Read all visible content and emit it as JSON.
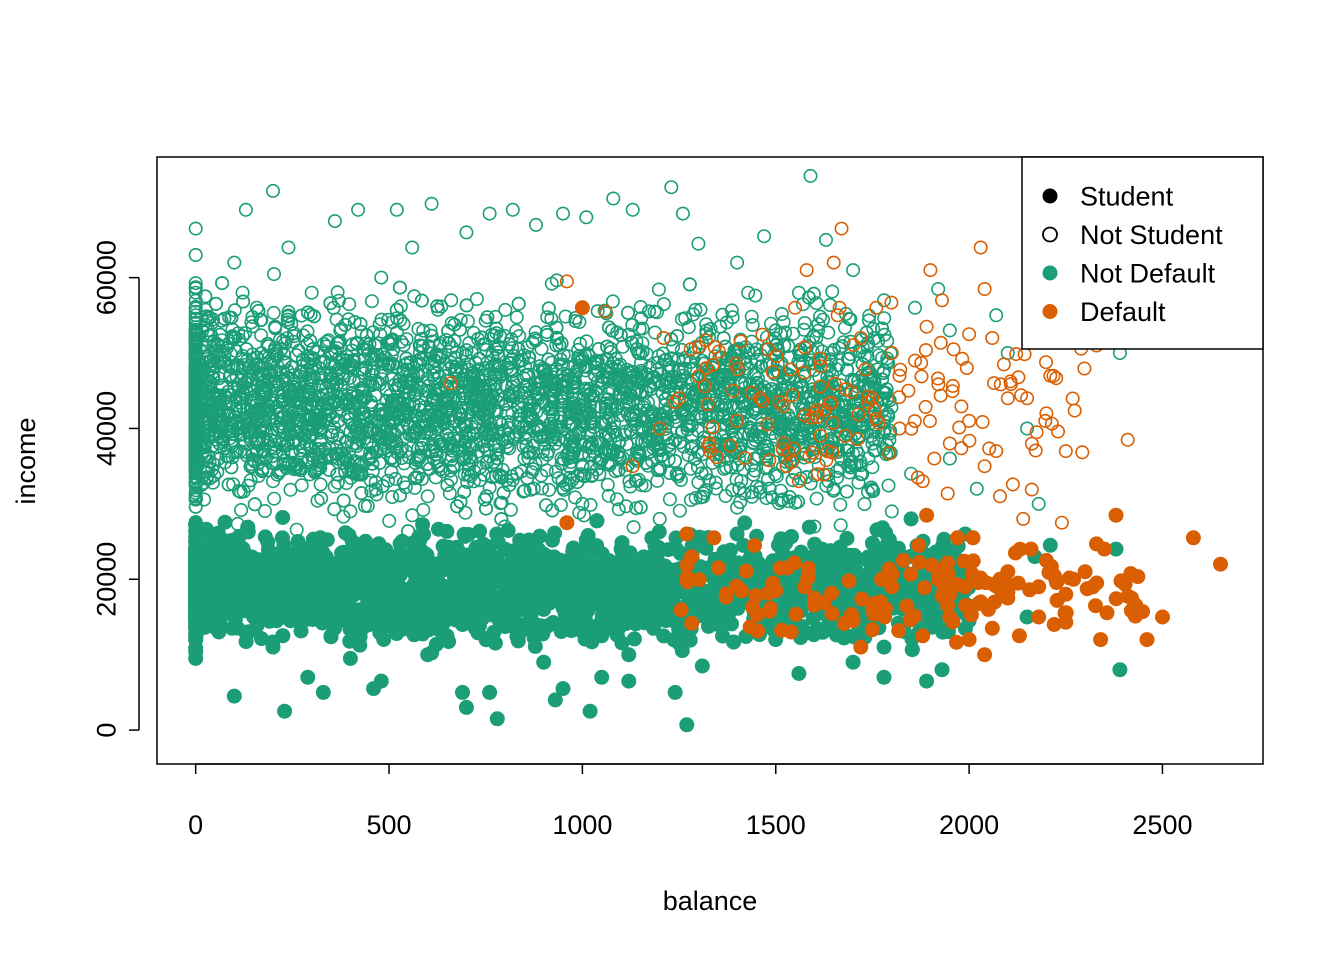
{
  "chart_data": {
    "type": "scatter",
    "title": "",
    "xlabel": "balance",
    "ylabel": "income",
    "xlim": [
      -100,
      2760
    ],
    "ylim": [
      -4500,
      76000
    ],
    "x_ticks": [
      0,
      500,
      1000,
      1500,
      2000,
      2500
    ],
    "y_ticks": [
      0,
      20000,
      40000,
      60000
    ],
    "x_tick_labels": [
      "0",
      "500",
      "1000",
      "1500",
      "2000",
      "2500"
    ],
    "y_tick_labels": [
      "0",
      "20000",
      "40000",
      "60000"
    ],
    "grid": false,
    "legend_position": "top-right",
    "legend": [
      {
        "label": "Student",
        "marker": "filled-circle",
        "color": "#000000"
      },
      {
        "label": "Not Student",
        "marker": "open-circle",
        "color": "#000000"
      },
      {
        "label": "Not Default",
        "marker": "filled-circle",
        "color": "#1B9E77"
      },
      {
        "label": "Default",
        "marker": "filled-circle",
        "color": "#D95F02"
      }
    ],
    "colors": {
      "not_default": "#1B9E77",
      "default": "#D95F02"
    },
    "series": [
      {
        "student": false,
        "default": false,
        "points": [
          [
            0,
            66500
          ],
          [
            0,
            63000
          ],
          [
            0,
            58000
          ],
          [
            0,
            52000
          ],
          [
            0,
            45000
          ],
          [
            0,
            38000
          ],
          [
            0,
            31000
          ],
          [
            0,
            26000
          ],
          [
            100,
            62000
          ],
          [
            130,
            69000
          ],
          [
            200,
            71500
          ],
          [
            240,
            64000
          ],
          [
            300,
            58000
          ],
          [
            360,
            67500
          ],
          [
            420,
            69000
          ],
          [
            480,
            60000
          ],
          [
            520,
            69000
          ],
          [
            560,
            64000
          ],
          [
            610,
            69800
          ],
          [
            700,
            66000
          ],
          [
            760,
            68500
          ],
          [
            820,
            69000
          ],
          [
            880,
            67000
          ],
          [
            950,
            68500
          ],
          [
            1010,
            68000
          ],
          [
            1080,
            70500
          ],
          [
            1130,
            69000
          ],
          [
            1230,
            72000
          ],
          [
            1260,
            68500
          ],
          [
            1300,
            64500
          ],
          [
            1400,
            62000
          ],
          [
            1470,
            65500
          ],
          [
            1590,
            73500
          ],
          [
            1630,
            65000
          ],
          [
            1700,
            61000
          ],
          [
            1780,
            57000
          ],
          [
            1860,
            56000
          ],
          [
            1920,
            58500
          ],
          [
            1950,
            53000
          ],
          [
            2070,
            55000
          ],
          [
            2100,
            50000
          ],
          [
            2390,
            50000
          ],
          [
            2150,
            40000
          ],
          [
            2180,
            30000
          ],
          [
            150,
            48000
          ],
          [
            250,
            42000
          ],
          [
            350,
            50000
          ],
          [
            450,
            38000
          ],
          [
            550,
            46000
          ],
          [
            650,
            40000
          ],
          [
            750,
            48000
          ],
          [
            850,
            36000
          ],
          [
            950,
            44000
          ],
          [
            1050,
            38000
          ],
          [
            1150,
            46000
          ],
          [
            1250,
            34000
          ],
          [
            1350,
            42000
          ],
          [
            1450,
            36000
          ],
          [
            1550,
            40000
          ],
          [
            1650,
            32000
          ],
          [
            1750,
            38000
          ],
          [
            1850,
            34000
          ],
          [
            1950,
            36000
          ],
          [
            2020,
            32000
          ],
          [
            200,
            33000
          ],
          [
            400,
            29000
          ],
          [
            600,
            31000
          ],
          [
            800,
            27000
          ],
          [
            1000,
            30000
          ],
          [
            1200,
            28000
          ],
          [
            1400,
            29500
          ],
          [
            1600,
            27000
          ],
          [
            1800,
            29000
          ]
        ]
      },
      {
        "student": false,
        "default": true,
        "points": [
          [
            960,
            59500
          ],
          [
            1060,
            55500
          ],
          [
            1210,
            52000
          ],
          [
            1280,
            50500
          ],
          [
            1320,
            48000
          ],
          [
            1390,
            45000
          ],
          [
            1480,
            50500
          ],
          [
            1550,
            56000
          ],
          [
            1580,
            61000
          ],
          [
            1650,
            62000
          ],
          [
            1660,
            55000
          ],
          [
            1670,
            66500
          ],
          [
            1720,
            52000
          ],
          [
            1760,
            56000
          ],
          [
            1800,
            50000
          ],
          [
            1820,
            47000
          ],
          [
            1860,
            49000
          ],
          [
            1890,
            53500
          ],
          [
            1900,
            61000
          ],
          [
            1930,
            57000
          ],
          [
            1960,
            50500
          ],
          [
            2000,
            52500
          ],
          [
            2030,
            64000
          ],
          [
            2040,
            58500
          ],
          [
            2060,
            52000
          ],
          [
            2090,
            48500
          ],
          [
            2100,
            44000
          ],
          [
            2150,
            44000
          ],
          [
            2200,
            42000
          ],
          [
            2210,
            47000
          ],
          [
            2250,
            37000
          ],
          [
            2330,
            51000
          ],
          [
            2390,
            57000
          ],
          [
            2410,
            38500
          ],
          [
            2500,
            51500
          ],
          [
            2290,
            52500
          ],
          [
            1950,
            38000
          ],
          [
            2000,
            41000
          ],
          [
            2040,
            35000
          ],
          [
            2070,
            37000
          ],
          [
            2080,
            31000
          ],
          [
            2140,
            28000
          ],
          [
            2240,
            27500
          ],
          [
            1880,
            33000
          ],
          [
            1910,
            36000
          ],
          [
            1820,
            40000
          ],
          [
            1750,
            44000
          ],
          [
            1680,
            39000
          ],
          [
            1600,
            42000
          ],
          [
            1520,
            38000
          ],
          [
            1460,
            44000
          ],
          [
            1400,
            41000
          ],
          [
            1330,
            37000
          ],
          [
            1130,
            35000
          ],
          [
            1250,
            44000
          ],
          [
            1240,
            43500
          ],
          [
            660,
            46000
          ],
          [
            1200,
            40000
          ],
          [
            1560,
            33000
          ]
        ]
      },
      {
        "student": true,
        "default": false,
        "points": [
          [
            0,
            9500
          ],
          [
            0,
            12000
          ],
          [
            0,
            15000
          ],
          [
            0,
            20000
          ],
          [
            0,
            25000
          ],
          [
            100,
            4500
          ],
          [
            230,
            2500
          ],
          [
            290,
            7000
          ],
          [
            330,
            5000
          ],
          [
            460,
            5500
          ],
          [
            480,
            6500
          ],
          [
            690,
            5000
          ],
          [
            700,
            3000
          ],
          [
            760,
            5000
          ],
          [
            780,
            1500
          ],
          [
            930,
            4000
          ],
          [
            950,
            5500
          ],
          [
            1020,
            2500
          ],
          [
            1050,
            7000
          ],
          [
            1120,
            6500
          ],
          [
            1240,
            5000
          ],
          [
            1270,
            700
          ],
          [
            1560,
            7500
          ],
          [
            1780,
            7000
          ],
          [
            1890,
            6500
          ],
          [
            2390,
            8000
          ],
          [
            1930,
            8000
          ],
          [
            1700,
            9000
          ],
          [
            1310,
            8500
          ],
          [
            1120,
            10000
          ],
          [
            900,
            9000
          ],
          [
            600,
            10000
          ],
          [
            400,
            9500
          ],
          [
            200,
            11000
          ],
          [
            150,
            15000
          ],
          [
            300,
            20000
          ],
          [
            500,
            14000
          ],
          [
            700,
            22000
          ],
          [
            900,
            16000
          ],
          [
            1100,
            24000
          ],
          [
            1300,
            18000
          ],
          [
            1500,
            12000
          ],
          [
            1700,
            20000
          ],
          [
            1850,
            15000
          ],
          [
            2000,
            14500
          ],
          [
            2150,
            15000
          ],
          [
            2170,
            23000
          ],
          [
            2210,
            24500
          ],
          [
            2380,
            24000
          ],
          [
            1990,
            26000
          ],
          [
            1850,
            28000
          ],
          [
            1620,
            24000
          ],
          [
            1400,
            26000
          ],
          [
            1200,
            20000
          ],
          [
            1000,
            18000
          ],
          [
            800,
            24000
          ],
          [
            600,
            20000
          ],
          [
            400,
            16000
          ],
          [
            250,
            22000
          ],
          [
            1780,
            11000
          ],
          [
            1640,
            15000
          ],
          [
            1550,
            17500
          ],
          [
            1450,
            22000
          ],
          [
            1350,
            14000
          ],
          [
            1250,
            11500
          ],
          [
            1150,
            15500
          ],
          [
            1050,
            12500
          ],
          [
            950,
            21000
          ],
          [
            850,
            13500
          ],
          [
            750,
            18500
          ],
          [
            650,
            12500
          ],
          [
            550,
            17000
          ],
          [
            450,
            23500
          ],
          [
            350,
            12500
          ],
          [
            250,
            17500
          ],
          [
            120,
            21000
          ],
          [
            60,
            13000
          ]
        ]
      },
      {
        "student": true,
        "default": true,
        "points": [
          [
            1000,
            56000
          ],
          [
            960,
            27500
          ],
          [
            1270,
            26000
          ],
          [
            1340,
            25500
          ],
          [
            1530,
            21500
          ],
          [
            1500,
            18500
          ],
          [
            1540,
            13000
          ],
          [
            1600,
            17500
          ],
          [
            1700,
            14500
          ],
          [
            1720,
            11000
          ],
          [
            1750,
            16000
          ],
          [
            1800,
            19000
          ],
          [
            1830,
            22500
          ],
          [
            1870,
            24500
          ],
          [
            1890,
            28500
          ],
          [
            1920,
            21000
          ],
          [
            1950,
            18000
          ],
          [
            1970,
            25500
          ],
          [
            1990,
            19000
          ],
          [
            2010,
            25500
          ],
          [
            2030,
            17000
          ],
          [
            2040,
            10000
          ],
          [
            2060,
            13500
          ],
          [
            2080,
            20000
          ],
          [
            2100,
            17500
          ],
          [
            2120,
            23500
          ],
          [
            2130,
            12500
          ],
          [
            2160,
            24000
          ],
          [
            2180,
            19000
          ],
          [
            2200,
            22500
          ],
          [
            2220,
            20500
          ],
          [
            2250,
            18000
          ],
          [
            2270,
            20000
          ],
          [
            2300,
            21000
          ],
          [
            2320,
            19000
          ],
          [
            2330,
            19500
          ],
          [
            2340,
            12000
          ],
          [
            2350,
            24000
          ],
          [
            2380,
            28500
          ],
          [
            2420,
            17500
          ],
          [
            2460,
            12000
          ],
          [
            2500,
            15000
          ],
          [
            2580,
            25500
          ],
          [
            2650,
            22000
          ],
          [
            2180,
            15000
          ],
          [
            2220,
            14000
          ],
          [
            1950,
            15000
          ],
          [
            1880,
            12500
          ],
          [
            2000,
            12000
          ],
          [
            2050,
            16000
          ],
          [
            2100,
            21000
          ]
        ]
      }
    ],
    "dense_regions": [
      {
        "student": false,
        "default": false,
        "x": [
          0,
          1800
        ],
        "y": [
          24000,
          62000
        ],
        "count": 4200
      },
      {
        "student": true,
        "default": false,
        "x": [
          0,
          2000
        ],
        "y": [
          9000,
          29000
        ],
        "count": 2800
      },
      {
        "student": false,
        "default": true,
        "x": [
          1300,
          2300
        ],
        "y": [
          26000,
          60000
        ],
        "count": 120
      },
      {
        "student": true,
        "default": true,
        "x": [
          1250,
          2450
        ],
        "y": [
          10000,
          27000
        ],
        "count": 110
      }
    ]
  }
}
